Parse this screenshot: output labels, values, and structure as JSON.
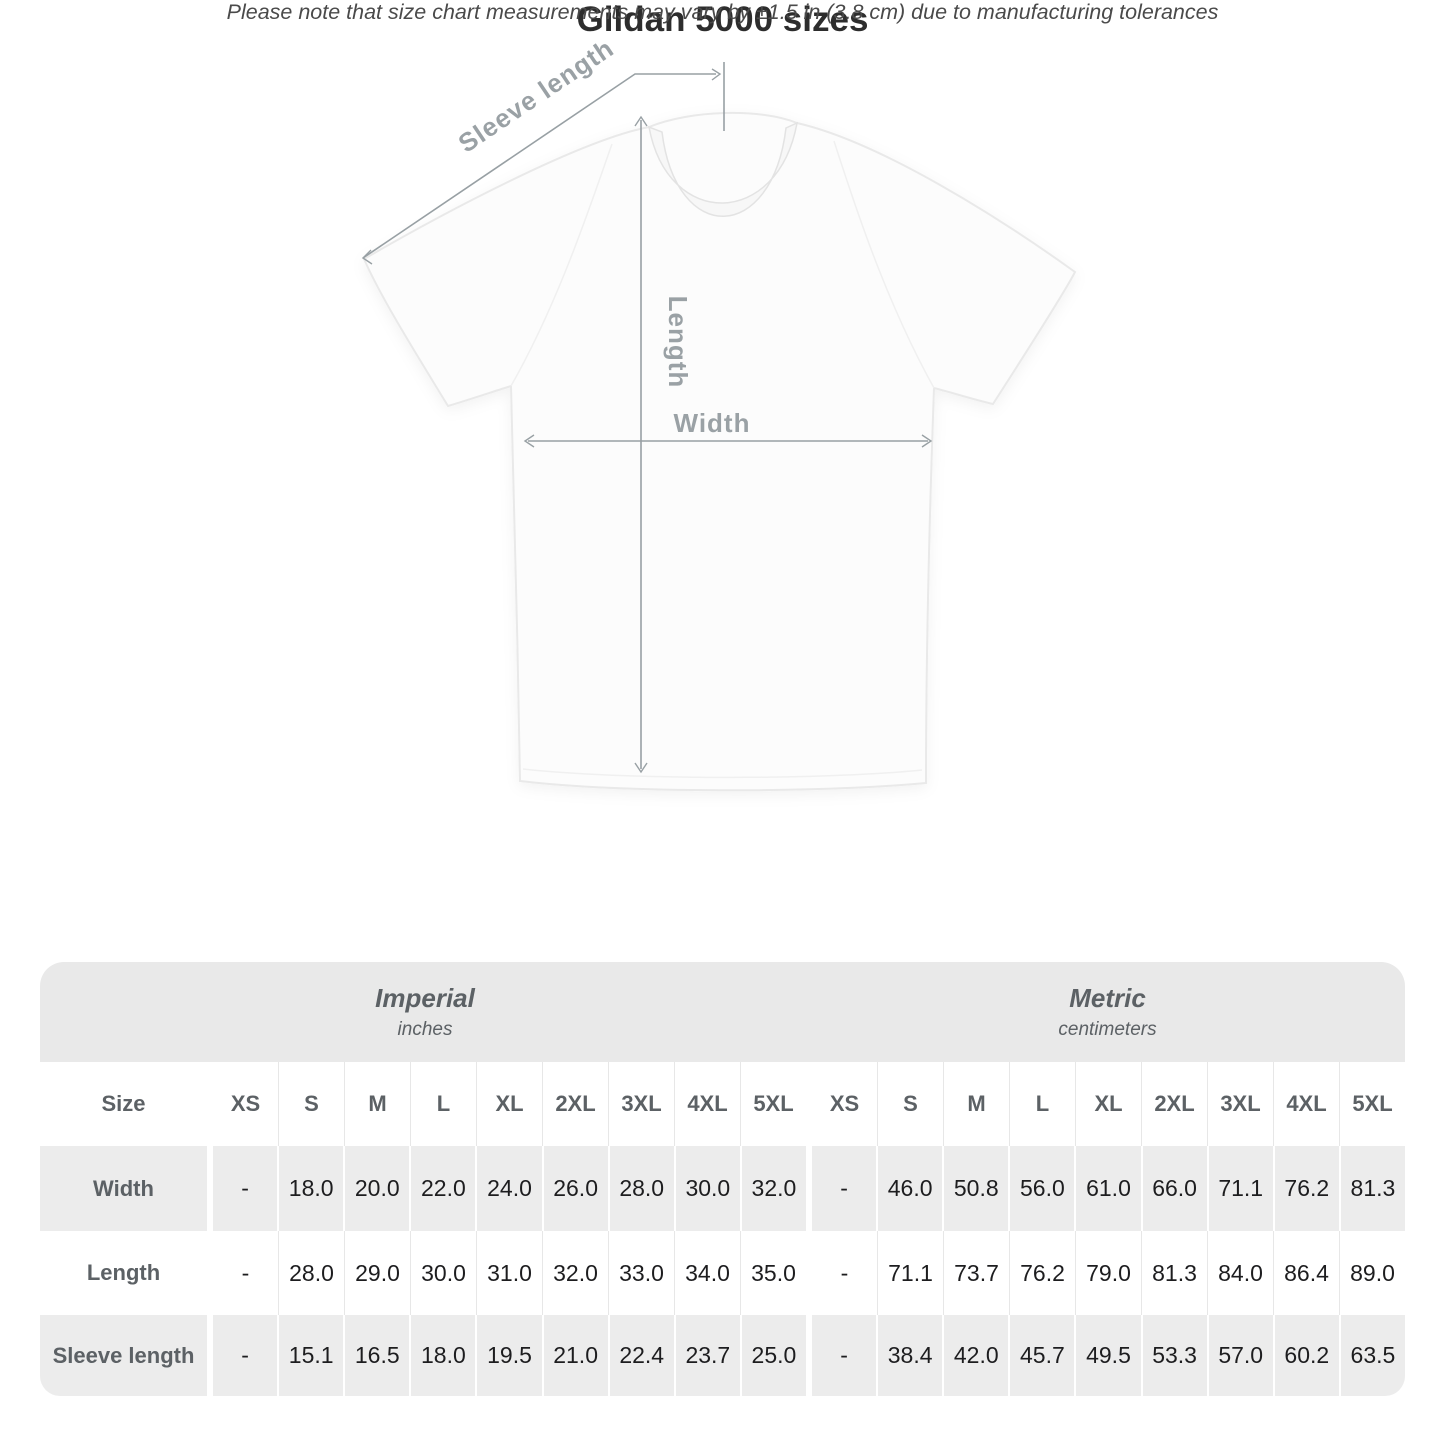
{
  "diagram": {
    "sleeve_label": "Sleeve length",
    "length_label": "Length",
    "width_label": "Width"
  },
  "title": "Gildan 5000 sizes",
  "subtitle": "Please note that size chart measurements may vary by ±1.5 in (3.8 cm) due to manufacturing tolerances",
  "table": {
    "unit_groups": [
      {
        "name": "Imperial",
        "unit": "inches"
      },
      {
        "name": "Metric",
        "unit": "centimeters"
      }
    ],
    "size_label": "Size",
    "sizes": [
      "XS",
      "S",
      "M",
      "L",
      "XL",
      "2XL",
      "3XL",
      "4XL",
      "5XL"
    ],
    "rows": [
      {
        "label": "Width",
        "imperial": [
          "-",
          "18.0",
          "20.0",
          "22.0",
          "24.0",
          "26.0",
          "28.0",
          "30.0",
          "32.0"
        ],
        "metric": [
          "-",
          "46.0",
          "50.8",
          "56.0",
          "61.0",
          "66.0",
          "71.1",
          "76.2",
          "81.3"
        ]
      },
      {
        "label": "Length",
        "imperial": [
          "-",
          "28.0",
          "29.0",
          "30.0",
          "31.0",
          "32.0",
          "33.0",
          "34.0",
          "35.0"
        ],
        "metric": [
          "-",
          "71.1",
          "73.7",
          "76.2",
          "79.0",
          "81.3",
          "84.0",
          "86.4",
          "89.0"
        ]
      },
      {
        "label": "Sleeve length",
        "imperial": [
          "-",
          "15.1",
          "16.5",
          "18.0",
          "19.5",
          "21.0",
          "22.4",
          "23.7",
          "25.0"
        ],
        "metric": [
          "-",
          "38.4",
          "42.0",
          "45.7",
          "49.5",
          "53.3",
          "57.0",
          "60.2",
          "63.5"
        ]
      }
    ]
  },
  "colors": {
    "annotation": "#98a0a4",
    "label_text": "#9aa1a5",
    "table_band": "#e9e9e9",
    "row_stripe": "#ececec",
    "header_text": "#5c6165",
    "value_text": "#1d1d1f",
    "title_text": "#2d2d2d"
  }
}
